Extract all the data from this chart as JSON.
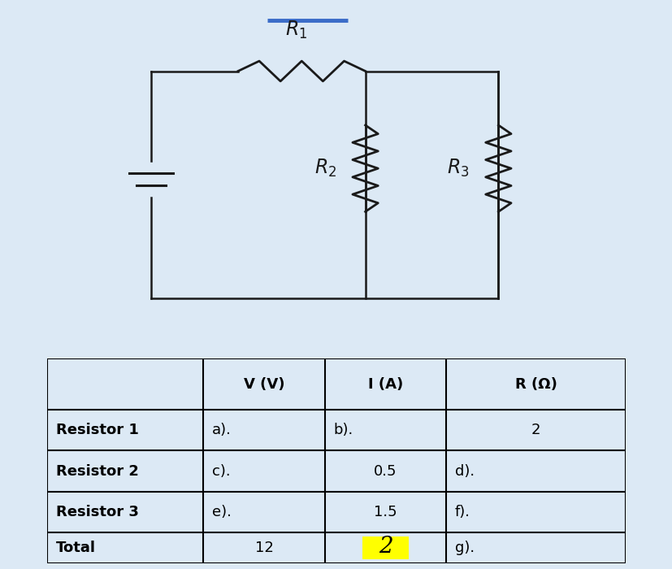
{
  "bg_color": "#dce9f5",
  "panel_color": "#ffffff",
  "blue_line_color": "#3a6cc8",
  "circuit_line_color": "#1a1a1a",
  "table_header": [
    "",
    "V (V)",
    "I (A)",
    "R (Ω)"
  ],
  "table_rows": [
    [
      "Resistor 1",
      "a).",
      "b).",
      "2"
    ],
    [
      "Resistor 2",
      "c).",
      "0.5",
      "d)."
    ],
    [
      "Resistor 3",
      "e).",
      "1.5",
      "f)."
    ],
    [
      "Total",
      "12",
      "2",
      "g)."
    ]
  ],
  "total_highlight_color": "#ffff00",
  "r1_label": "$R_1$",
  "r2_label": "$R_2$",
  "r3_label": "$R_3$",
  "circuit_lw": 1.8,
  "resistor_lw": 2.0
}
